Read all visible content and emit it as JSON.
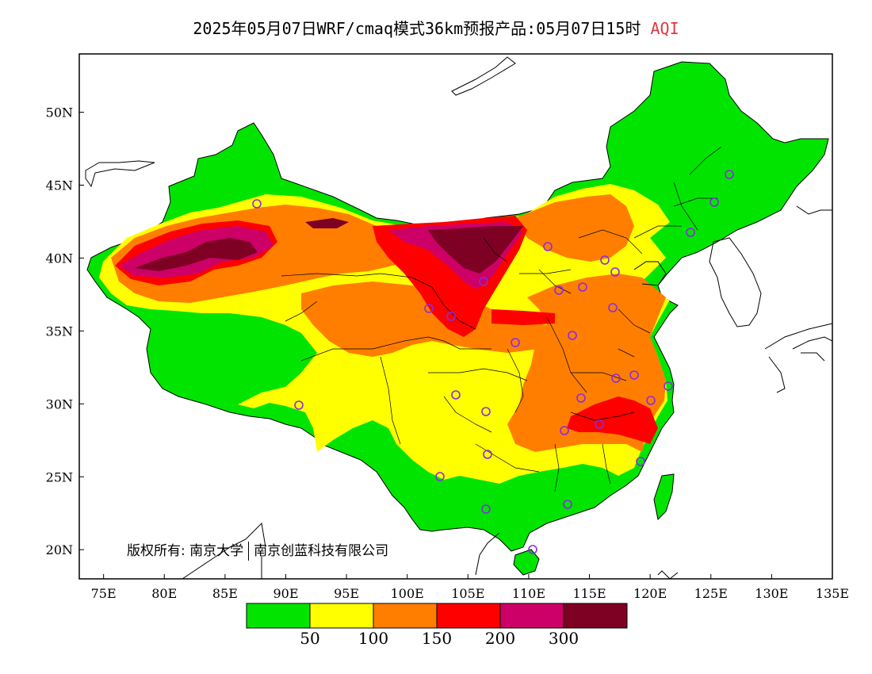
{
  "title": {
    "text": "2025年05月07日WRF/cmaq模式36km预报产品:05月07日15时",
    "pollutant": "AQI",
    "pollutant_color": "#e0393e"
  },
  "map": {
    "lon_range": [
      73,
      135
    ],
    "lat_range": [
      18,
      54
    ],
    "lon_ticks": [
      "75E",
      "80E",
      "85E",
      "90E",
      "95E",
      "100E",
      "105E",
      "110E",
      "115E",
      "120E",
      "125E",
      "130E",
      "135E"
    ],
    "lat_ticks": [
      "50N",
      "45N",
      "40N",
      "35N",
      "30N",
      "25N",
      "20N"
    ],
    "station_marker_color": "#8a2be2"
  },
  "copyright": {
    "prefix": "版权所有:",
    "org1": "南京大学",
    "org2": "南京创蓝科技有限公司"
  },
  "legend": {
    "colors": [
      "#00e400",
      "#ffff00",
      "#ff7e00",
      "#ff0000",
      "#cc0066",
      "#7e0023"
    ],
    "labels": [
      "50",
      "100",
      "150",
      "200",
      "300"
    ]
  }
}
